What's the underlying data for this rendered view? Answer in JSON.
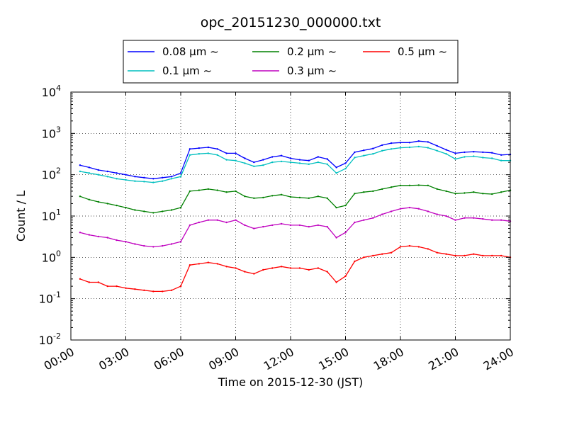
{
  "chart_data": {
    "type": "line",
    "title": "opc_20151230_000000.txt",
    "xlabel": "Time on 2015-12-30 (JST)",
    "ylabel": "Count / L",
    "yscale": "log",
    "grid": true,
    "legend_position": "top-center",
    "xlim": [
      "00:00",
      "24:00"
    ],
    "ylim": [
      0.01,
      10000
    ],
    "x_ticks": [
      "00:00",
      "03:00",
      "06:00",
      "09:00",
      "12:00",
      "15:00",
      "18:00",
      "21:00",
      "24:00"
    ],
    "y_ticks": [
      {
        "base": "10",
        "exp": "-2",
        "value": 0.01
      },
      {
        "base": "10",
        "exp": "-1",
        "value": 0.1
      },
      {
        "base": "10",
        "exp": "0",
        "value": 1
      },
      {
        "base": "10",
        "exp": "1",
        "value": 10
      },
      {
        "base": "10",
        "exp": "2",
        "value": 100
      },
      {
        "base": "10",
        "exp": "3",
        "value": 1000
      },
      {
        "base": "10",
        "exp": "4",
        "value": 10000
      }
    ],
    "x": [
      "00:30",
      "01:00",
      "01:30",
      "02:00",
      "02:30",
      "03:00",
      "03:30",
      "04:00",
      "04:30",
      "05:00",
      "05:30",
      "06:00",
      "06:30",
      "07:00",
      "07:30",
      "08:00",
      "08:30",
      "09:00",
      "09:30",
      "10:00",
      "10:30",
      "11:00",
      "11:30",
      "12:00",
      "12:30",
      "13:00",
      "13:30",
      "14:00",
      "14:30",
      "15:00",
      "15:30",
      "16:00",
      "16:30",
      "17:00",
      "17:30",
      "18:00",
      "18:30",
      "19:00",
      "19:30",
      "20:00",
      "20:30",
      "21:00",
      "21:30",
      "22:00",
      "22:30",
      "23:00",
      "23:30",
      "24:00"
    ],
    "series": [
      {
        "name": "0.08 μm ~",
        "color": "#0000ff",
        "values": [
          170,
          150,
          130,
          120,
          110,
          100,
          90,
          85,
          80,
          85,
          90,
          110,
          420,
          440,
          460,
          420,
          330,
          330,
          250,
          200,
          230,
          270,
          290,
          250,
          230,
          220,
          270,
          240,
          150,
          190,
          350,
          390,
          430,
          520,
          580,
          600,
          600,
          650,
          620,
          500,
          400,
          330,
          350,
          360,
          350,
          340,
          300,
          310
        ]
      },
      {
        "name": "0.1 μm ~",
        "color": "#00bfbf",
        "values": [
          120,
          110,
          100,
          90,
          80,
          75,
          70,
          68,
          65,
          70,
          80,
          90,
          300,
          320,
          330,
          300,
          230,
          220,
          190,
          160,
          170,
          200,
          210,
          200,
          190,
          180,
          200,
          180,
          110,
          140,
          260,
          290,
          320,
          380,
          420,
          450,
          460,
          480,
          450,
          380,
          320,
          240,
          270,
          280,
          260,
          250,
          220,
          220
        ]
      },
      {
        "name": "0.2 μm ~",
        "color": "#008000",
        "values": [
          30,
          25,
          22,
          20,
          18,
          16,
          14,
          13,
          12,
          13,
          14,
          16,
          40,
          42,
          45,
          42,
          38,
          40,
          30,
          27,
          28,
          31,
          33,
          29,
          28,
          27,
          30,
          27,
          16,
          18,
          35,
          38,
          40,
          45,
          50,
          55,
          55,
          56,
          55,
          45,
          40,
          35,
          36,
          38,
          35,
          34,
          38,
          42
        ]
      },
      {
        "name": "0.3 μm ~",
        "color": "#bf00bf",
        "values": [
          4,
          3.5,
          3.2,
          3,
          2.6,
          2.4,
          2.1,
          1.9,
          1.8,
          1.9,
          2.1,
          2.4,
          6,
          7,
          8,
          8,
          7,
          8,
          6,
          5,
          5.5,
          6,
          6.5,
          6,
          6,
          5.5,
          6,
          5.5,
          3,
          4,
          7,
          8,
          9,
          11,
          13,
          15,
          16,
          15,
          13,
          11,
          10,
          8,
          9,
          9,
          8.5,
          8,
          8,
          7.5
        ]
      },
      {
        "name": "0.5 μm ~",
        "color": "#ff0000",
        "values": [
          0.3,
          0.25,
          0.25,
          0.2,
          0.2,
          0.18,
          0.17,
          0.16,
          0.15,
          0.15,
          0.16,
          0.2,
          0.65,
          0.7,
          0.75,
          0.7,
          0.6,
          0.55,
          0.45,
          0.4,
          0.5,
          0.55,
          0.6,
          0.55,
          0.55,
          0.5,
          0.55,
          0.45,
          0.25,
          0.35,
          0.8,
          1.0,
          1.1,
          1.2,
          1.3,
          1.8,
          1.9,
          1.8,
          1.6,
          1.3,
          1.2,
          1.1,
          1.1,
          1.2,
          1.1,
          1.1,
          1.1,
          1.0
        ]
      }
    ]
  }
}
